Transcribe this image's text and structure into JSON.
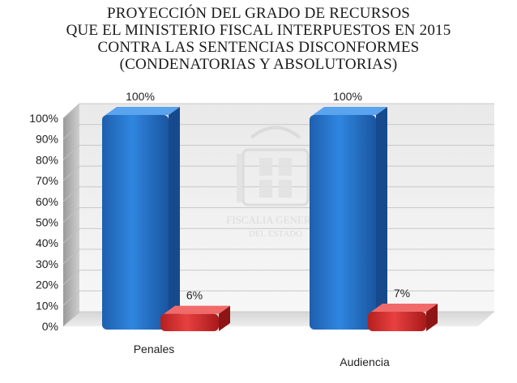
{
  "chart_data": {
    "type": "bar",
    "title_lines": [
      "PROYECCIÓN DEL GRADO DE RECURSOS",
      "QUE EL MINISTERIO FISCAL INTERPUESTOS EN 2015",
      "CONTRA LAS SENTENCIAS DISCONFORMES",
      "(CONDENATORIAS Y ABSOLUTORIAS)"
    ],
    "categories": [
      "Penales",
      "Audiencia"
    ],
    "series": [
      {
        "values": [
          100,
          100
        ],
        "color": "#1f6fc4",
        "labels": [
          "100%",
          "100%"
        ]
      },
      {
        "values": [
          6,
          7
        ],
        "color": "#d52b2b",
        "labels": [
          "6%",
          "7%"
        ]
      }
    ],
    "ylim": [
      0,
      100
    ],
    "yticks": [
      "0%",
      "10%",
      "20%",
      "30%",
      "40%",
      "50%",
      "60%",
      "70%",
      "80%",
      "90%",
      "100%"
    ],
    "grid": true,
    "style": "3d"
  },
  "watermark": {
    "line1": "FISCALIA GENERAL",
    "line2": "DEL ESTADO"
  }
}
